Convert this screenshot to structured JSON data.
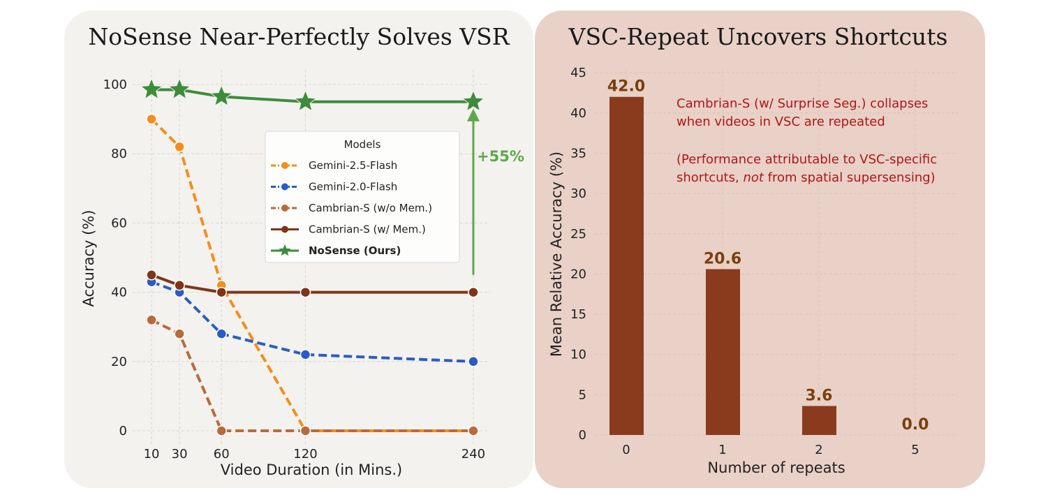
{
  "chart_data": [
    {
      "type": "line",
      "title": "NoSense Near-Perfectly Solves VSR",
      "xlabel": "Video Duration (in Mins.)",
      "ylabel": "Accuracy (%)",
      "x": [
        10,
        30,
        60,
        120,
        240
      ],
      "x_ticks": [
        "10",
        "30",
        "60",
        "120",
        "240"
      ],
      "y_ticks": [
        "0",
        "20",
        "40",
        "60",
        "80",
        "100"
      ],
      "xlim": [
        0,
        250
      ],
      "ylim": [
        -3,
        104
      ],
      "grid": true,
      "legend": {
        "title": "Models",
        "placement": "center-right"
      },
      "series": [
        {
          "name": "Gemini-2.5-Flash",
          "color": "#f28e1c",
          "style": "dashed",
          "marker": "circle",
          "values": [
            90,
            82,
            42,
            0,
            0
          ]
        },
        {
          "name": "Gemini-2.0-Flash",
          "color": "#2a5cc4",
          "style": "dashed",
          "marker": "circle",
          "values": [
            43,
            40,
            28,
            22,
            20
          ]
        },
        {
          "name": "Cambrian-S (w/o Mem.)",
          "color": "#b86a3c",
          "style": "dashed",
          "marker": "circle",
          "values": [
            32,
            28,
            0,
            0,
            0
          ]
        },
        {
          "name": "Cambrian-S (w/ Mem.)",
          "color": "#7f3517",
          "style": "solid",
          "marker": "circle",
          "values": [
            45,
            42,
            40,
            40,
            40
          ]
        },
        {
          "name": "NoSense (Ours)",
          "color": "#3c8c3c",
          "style": "solid",
          "marker": "star",
          "bold": true,
          "values": [
            98.5,
            98.5,
            96.5,
            95,
            95
          ]
        }
      ],
      "annotation": {
        "text": "+55%",
        "color": "#5ca84a",
        "x": 240,
        "from": 45,
        "to": 93
      }
    },
    {
      "type": "bar",
      "title": "VSC-Repeat Uncovers Shortcuts",
      "xlabel": "Number of repeats",
      "ylabel": "Mean Relative Accuracy (%)",
      "categories": [
        "0",
        "1",
        "2",
        "5"
      ],
      "values": [
        42.0,
        20.6,
        3.6,
        0.0
      ],
      "value_labels": [
        "42.0",
        "20.6",
        "3.6",
        "0.0"
      ],
      "y_ticks": [
        "0",
        "5",
        "10",
        "15",
        "20",
        "25",
        "30",
        "35",
        "40",
        "45"
      ],
      "ylim": [
        0,
        45
      ],
      "grid": true,
      "bar_color": "#8a3b1e",
      "annotation": {
        "line1": "Cambrian-S (w/ Surprise Seg.) collapses",
        "line2": "when videos in VSC are repeated",
        "line3": "(Performance attributable to VSC-specific",
        "line4_pre": "shortcuts, ",
        "line4_em": "not",
        "line4_post": " from spatial supersensing)"
      }
    }
  ]
}
